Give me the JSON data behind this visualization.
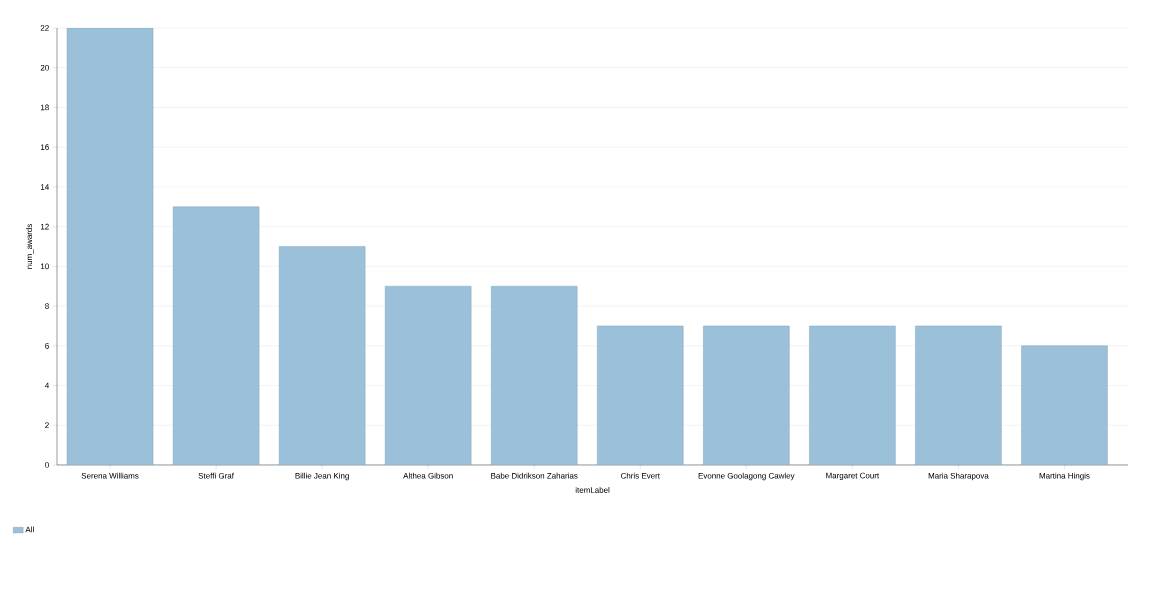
{
  "chart_data": {
    "type": "bar",
    "xlabel": "itemLabel",
    "ylabel": "num_awards",
    "categories": [
      "Serena Williams",
      "Steffi Graf",
      "Billie Jean King",
      "Althea Gibson",
      "Babe Didrikson Zaharias",
      "Chris Evert",
      "Evonne Goolagong Cawley",
      "Margaret Court",
      "Maria Sharapova",
      "Martina Hingis"
    ],
    "series": [
      {
        "name": "All",
        "color": "#9bc0da",
        "values": [
          22,
          13,
          11,
          9,
          9,
          7,
          7,
          7,
          7,
          6
        ]
      }
    ],
    "ylim": [
      0,
      22
    ],
    "yticks": [
      0,
      2,
      4,
      6,
      8,
      10,
      12,
      14,
      16,
      18,
      20,
      22
    ],
    "grid": "y",
    "legend": "bottom left"
  }
}
